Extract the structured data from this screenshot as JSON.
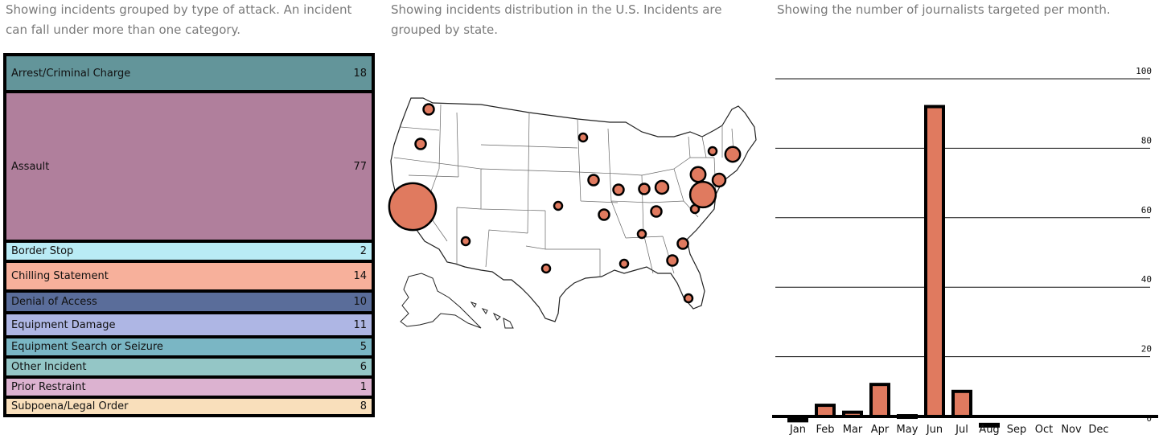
{
  "captions": {
    "treemap": "Showing incidents grouped by type of attack. An incident can fall under more than one category.",
    "map": "Showing incidents distribution in the U.S. Incidents are grouped by state.",
    "bar": "Showing the number of journalists targeted per month."
  },
  "chart_data": [
    {
      "type": "treemap",
      "title": "",
      "categories": [
        "Arrest/Criminal Charge",
        "Assault",
        "Border Stop",
        "Chilling Statement",
        "Denial of Access",
        "Equipment Damage",
        "Equipment Search or Seizure",
        "Other Incident",
        "Prior Restraint",
        "Subpoena/Legal Order"
      ],
      "values": [
        18,
        77,
        2,
        14,
        10,
        11,
        5,
        6,
        1,
        8
      ],
      "colors": [
        "#63959a",
        "#b07f9c",
        "#b9ebf5",
        "#f7b09b",
        "#5a6d9a",
        "#aeb6e4",
        "#7ab6c4",
        "#94c6c6",
        "#dcb2d0",
        "#f9dfbb"
      ]
    },
    {
      "type": "bubble-map",
      "region": "United States",
      "note_free": true,
      "bubble_color": "#e07a5f",
      "bubbles": [
        {
          "state": "WA",
          "value": 2
        },
        {
          "state": "OR",
          "value": 2
        },
        {
          "state": "CA",
          "value": 40
        },
        {
          "state": "AZ",
          "value": 1
        },
        {
          "state": "MN",
          "value": 1
        },
        {
          "state": "IA",
          "value": 2
        },
        {
          "state": "KS",
          "value": 1
        },
        {
          "state": "MO",
          "value": 2
        },
        {
          "state": "IL",
          "value": 2
        },
        {
          "state": "TX",
          "value": 1
        },
        {
          "state": "IN",
          "value": 2
        },
        {
          "state": "OH",
          "value": 3
        },
        {
          "state": "KY",
          "value": 2
        },
        {
          "state": "TN",
          "value": 1
        },
        {
          "state": "AL",
          "value": 1
        },
        {
          "state": "GA",
          "value": 2
        },
        {
          "state": "SC",
          "value": 2
        },
        {
          "state": "FL",
          "value": 1
        },
        {
          "state": "VA",
          "value": 1
        },
        {
          "state": "NY",
          "value": 4
        },
        {
          "state": "MA",
          "value": 4
        },
        {
          "state": "PA",
          "value": 1
        },
        {
          "state": "NJ",
          "value": 3
        },
        {
          "state": "DC",
          "value": 12
        }
      ]
    },
    {
      "type": "bar",
      "title": "",
      "categories": [
        "Jan",
        "Feb",
        "Mar",
        "Apr",
        "May",
        "Jun",
        "Jul",
        "Aug",
        "Sep",
        "Oct",
        "Nov",
        "Dec"
      ],
      "values": [
        2,
        6,
        4,
        12,
        3,
        92,
        10,
        0.5,
        0,
        0,
        0,
        0
      ],
      "ylim": [
        0,
        100
      ],
      "yticks": [
        0,
        20,
        40,
        60,
        80,
        100
      ],
      "bar_color": "#e07a5f",
      "grid": true
    }
  ]
}
